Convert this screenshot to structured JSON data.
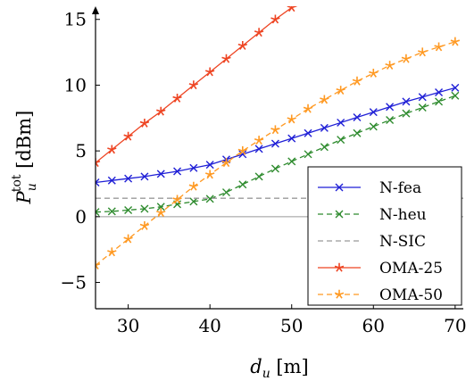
{
  "chart_data": {
    "type": "line",
    "xlabel": "d_u [m]",
    "ylabel": "P_u^tot [dBm]",
    "xlim": [
      26,
      71
    ],
    "ylim": [
      -7,
      16
    ],
    "xticks": [
      30,
      40,
      50,
      60,
      70
    ],
    "yticks": [
      -5,
      0,
      5,
      10,
      15
    ],
    "xtick_labels": [
      "30",
      "40",
      "50",
      "60",
      "70"
    ],
    "ytick_labels": [
      "−5",
      "0",
      "5",
      "10",
      "15"
    ],
    "grid": "horizontal line at 0 only",
    "legend_position": "bottom-right",
    "series": [
      {
        "name": "N-fea",
        "color": "#1f1fd6",
        "line": "solid",
        "marker": "x",
        "x": [
          26,
          28,
          30,
          32,
          34,
          36,
          38,
          40,
          42,
          44,
          46,
          48,
          50,
          52,
          54,
          56,
          58,
          60,
          62,
          64,
          66,
          68,
          70
        ],
        "y": [
          2.6,
          2.75,
          2.9,
          3.05,
          3.25,
          3.45,
          3.7,
          3.95,
          4.35,
          4.75,
          5.15,
          5.55,
          5.95,
          6.35,
          6.75,
          7.15,
          7.55,
          7.95,
          8.35,
          8.75,
          9.1,
          9.45,
          9.8
        ]
      },
      {
        "name": "N-heu",
        "color": "#2e8b2e",
        "line": "dashed",
        "marker": "x",
        "x": [
          26,
          28,
          30,
          32,
          34,
          36,
          38,
          40,
          42,
          44,
          46,
          48,
          50,
          52,
          54,
          56,
          58,
          60,
          62,
          64,
          66,
          68,
          70
        ],
        "y": [
          0.35,
          0.4,
          0.5,
          0.6,
          0.75,
          0.95,
          1.15,
          1.35,
          1.85,
          2.45,
          3.05,
          3.65,
          4.2,
          4.75,
          5.3,
          5.85,
          6.35,
          6.85,
          7.35,
          7.85,
          8.3,
          8.75,
          9.2
        ]
      },
      {
        "name": "N-SIC",
        "color": "#999999",
        "line": "dashed",
        "marker": "none",
        "x": [
          26,
          71
        ],
        "y": [
          1.4,
          1.4
        ]
      },
      {
        "name": "OMA-25",
        "color": "#ee4422",
        "line": "solid",
        "marker": "star",
        "x": [
          25.5,
          26,
          28,
          30,
          32,
          34,
          36,
          38,
          40,
          42,
          44,
          46,
          48,
          50,
          52
        ],
        "y": [
          3.5,
          4.1,
          5.1,
          6.1,
          7.1,
          8.0,
          9.0,
          10.0,
          11.0,
          12.0,
          13.0,
          14.0,
          15.0,
          15.9,
          16.3
        ]
      },
      {
        "name": "OMA-50",
        "color": "#ff9922",
        "line": "dashed",
        "marker": "star",
        "x": [
          26,
          28,
          30,
          32,
          34,
          36,
          38,
          40,
          42,
          44,
          46,
          48,
          50,
          52,
          54,
          56,
          58,
          60,
          62,
          64,
          66,
          68,
          70
        ],
        "y": [
          -3.7,
          -2.7,
          -1.7,
          -0.7,
          0.3,
          1.3,
          2.3,
          3.2,
          4.1,
          5.0,
          5.8,
          6.6,
          7.4,
          8.2,
          8.9,
          9.6,
          10.3,
          10.9,
          11.5,
          12.0,
          12.5,
          12.9,
          13.3
        ]
      }
    ]
  }
}
